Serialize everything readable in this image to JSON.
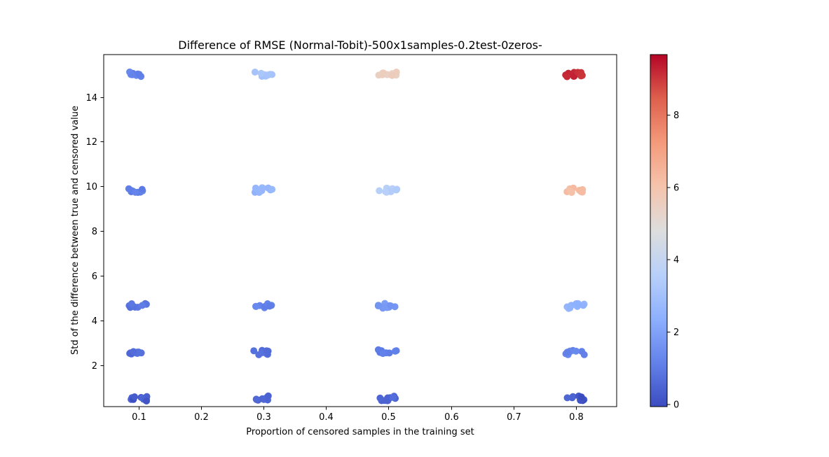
{
  "chart_data": {
    "type": "scatter",
    "title": "Difference of RMSE (Normal-Tobit)-500x1samples-0.2test-0zeros-",
    "xlabel": "Proportion of censored samples in the training set",
    "ylabel": "Std of the difference between true and censored value",
    "xlim": [
      0.045,
      0.867
    ],
    "ylim": [
      0.65,
      15.85
    ],
    "xticks": [
      "0.1",
      "0.2",
      "0.3",
      "0.4",
      "0.5",
      "0.6",
      "0.7",
      "0.8"
    ],
    "yticks": [
      "2",
      "4",
      "6",
      "8",
      "10",
      "12",
      "14"
    ],
    "grid": false,
    "colorbar": {
      "colormap": "coolwarm",
      "min": -0.05,
      "max": 9.7,
      "ticks": [
        "0",
        "2",
        "4",
        "6",
        "8"
      ]
    },
    "clusters": [
      {
        "x": 0.1,
        "y": 15,
        "value": 1.2
      },
      {
        "x": 0.3,
        "y": 15,
        "value": 3.2
      },
      {
        "x": 0.5,
        "y": 15,
        "value": 5.5
      },
      {
        "x": 0.8,
        "y": 15,
        "value": 9.2
      },
      {
        "x": 0.1,
        "y": 10,
        "value": 1.1
      },
      {
        "x": 0.3,
        "y": 10,
        "value": 2.6
      },
      {
        "x": 0.5,
        "y": 10,
        "value": 3.6
      },
      {
        "x": 0.8,
        "y": 10,
        "value": 6.3
      },
      {
        "x": 0.1,
        "y": 5,
        "value": 0.9
      },
      {
        "x": 0.3,
        "y": 5,
        "value": 1.2
      },
      {
        "x": 0.5,
        "y": 5,
        "value": 1.8
      },
      {
        "x": 0.8,
        "y": 5,
        "value": 2.6
      },
      {
        "x": 0.1,
        "y": 3,
        "value": 0.7
      },
      {
        "x": 0.3,
        "y": 3,
        "value": 0.8
      },
      {
        "x": 0.5,
        "y": 3,
        "value": 1.0
      },
      {
        "x": 0.8,
        "y": 3,
        "value": 1.3
      },
      {
        "x": 0.1,
        "y": 1,
        "value": 0.5
      },
      {
        "x": 0.3,
        "y": 1,
        "value": 0.6
      },
      {
        "x": 0.5,
        "y": 1,
        "value": 0.6
      },
      {
        "x": 0.8,
        "y": 1,
        "value": 0.4
      }
    ]
  }
}
